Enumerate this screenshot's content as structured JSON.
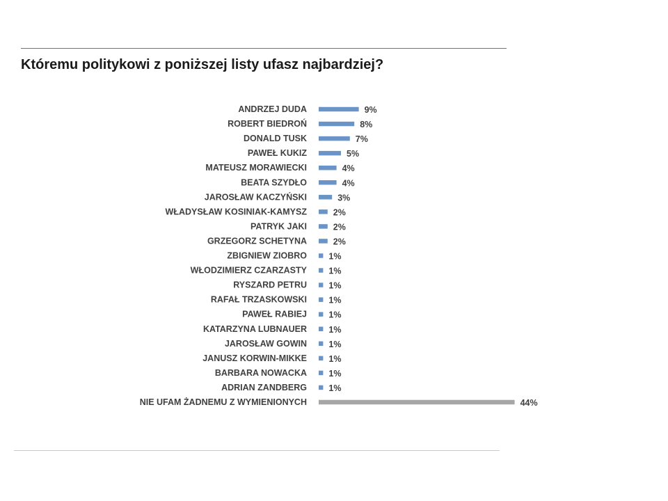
{
  "slide": {
    "question": "Któremu politykowi z poniższej listy ufasz najbardziej?"
  },
  "colors": {
    "bar": "#6a93c7",
    "bar_highlight": "#a6a6a6",
    "rule_top": "#c0504d",
    "text": "#404040"
  },
  "chart_data": {
    "type": "bar",
    "orientation": "horizontal",
    "title": "Któremu politykowi z poniższej listy ufasz najbardziej?",
    "xlabel": "",
    "ylabel": "",
    "unit": "%",
    "grid": false,
    "categories": [
      "ANDRZEJ DUDA",
      "ROBERT BIEDROŃ",
      "DONALD TUSK",
      "PAWEŁ KUKIZ",
      "MATEUSZ MORAWIECKI",
      "BEATA SZYDŁO",
      "JAROSŁAW KACZYŃSKI",
      "WŁADYSŁAW KOSINIAK-KAMYSZ",
      "PATRYK JAKI",
      "GRZEGORZ SCHETYNA",
      "ZBIGNIEW ZIOBRO",
      "WŁODZIMIERZ CZARZASTY",
      "RYSZARD PETRU",
      "RAFAŁ TRZASKOWSKI",
      "PAWEŁ RABIEJ",
      "KATARZYNA LUBNAUER",
      "JAROSŁAW GOWIN",
      "JANUSZ KORWIN-MIKKE",
      "BARBARA NOWACKA",
      "ADRIAN ZANDBERG",
      "NIE UFAM ŻADNEMU Z WYMIENIONYCH"
    ],
    "values": [
      9,
      8,
      7,
      5,
      4,
      4,
      3,
      2,
      2,
      2,
      1,
      1,
      1,
      1,
      1,
      1,
      1,
      1,
      1,
      1,
      44
    ],
    "value_labels": [
      "9%",
      "8%",
      "7%",
      "5%",
      "4%",
      "4%",
      "3%",
      "2%",
      "2%",
      "2%",
      "1%",
      "1%",
      "1%",
      "1%",
      "1%",
      "1%",
      "1%",
      "1%",
      "1%",
      "1%",
      "44%"
    ],
    "highlight_index": 20
  }
}
